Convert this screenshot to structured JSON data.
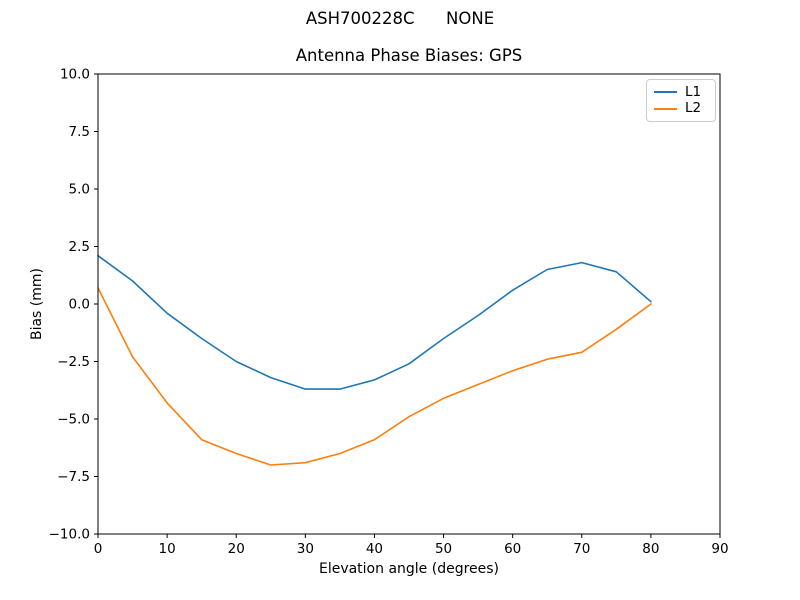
{
  "figure": {
    "suptitle": "ASH700228C      NONE"
  },
  "chart_data": {
    "type": "line",
    "title": "Antenna Phase Biases: GPS",
    "xlabel": "Elevation angle (degrees)",
    "ylabel": "Bias (mm)",
    "xlim": [
      0,
      90
    ],
    "ylim": [
      -10,
      10
    ],
    "grid": false,
    "legend_position": "upper right",
    "x_ticks": [
      0,
      10,
      20,
      30,
      40,
      50,
      60,
      70,
      80,
      90
    ],
    "x_tick_labels": [
      "0",
      "10",
      "20",
      "30",
      "40",
      "50",
      "60",
      "70",
      "80",
      "90"
    ],
    "y_ticks": [
      10.0,
      7.5,
      5.0,
      2.5,
      0.0,
      -2.5,
      -5.0,
      -7.5,
      -10.0
    ],
    "y_tick_labels": [
      "10.0",
      "7.5",
      "5.0",
      "2.5",
      "0.0",
      "−2.5",
      "−5.0",
      "−7.5",
      "−10.0"
    ],
    "x": [
      0,
      5,
      10,
      15,
      20,
      25,
      30,
      35,
      40,
      45,
      50,
      55,
      60,
      65,
      70,
      75,
      80
    ],
    "series": [
      {
        "name": "L1",
        "color": "#1f77b4",
        "values": [
          2.1,
          1.0,
          -0.4,
          -1.5,
          -2.5,
          -3.2,
          -3.7,
          -3.7,
          -3.3,
          -2.6,
          -1.5,
          -0.5,
          0.6,
          1.5,
          1.8,
          1.4,
          0.1
        ]
      },
      {
        "name": "L2",
        "color": "#ff7f0e",
        "values": [
          0.7,
          -2.3,
          -4.3,
          -5.9,
          -6.5,
          -7.0,
          -6.9,
          -6.5,
          -5.9,
          -4.9,
          -4.1,
          -3.5,
          -2.9,
          -2.4,
          -2.1,
          -1.1,
          0.0
        ]
      }
    ]
  }
}
